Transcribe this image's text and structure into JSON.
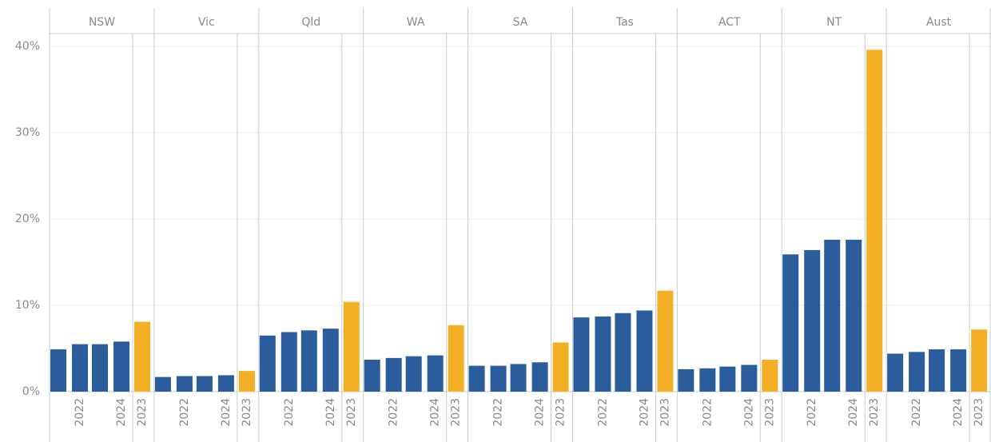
{
  "chart_data": {
    "type": "bar",
    "ylim": [
      0,
      40
    ],
    "yticks": [
      {
        "value": 0,
        "label": "0%"
      },
      {
        "value": 10,
        "label": "10%"
      },
      {
        "value": 20,
        "label": "20%"
      },
      {
        "value": 30,
        "label": "30%"
      },
      {
        "value": 40,
        "label": "40%"
      }
    ],
    "grid": true,
    "colors": [
      "#2b5c9b",
      "#2b5c9b",
      "#2b5c9b",
      "#2b5c9b",
      "#f3b026"
    ],
    "panels": [
      {
        "name": "NSW",
        "categories": [
          null,
          "2022",
          null,
          "2024",
          "2023"
        ],
        "values": [
          4.9,
          5.5,
          5.5,
          5.8,
          8.1
        ]
      },
      {
        "name": "Vic",
        "categories": [
          null,
          "2022",
          null,
          "2024",
          "2023"
        ],
        "values": [
          1.7,
          1.8,
          1.8,
          1.9,
          2.4
        ]
      },
      {
        "name": "Qld",
        "categories": [
          null,
          "2022",
          null,
          "2024",
          "2023"
        ],
        "values": [
          6.5,
          6.9,
          7.1,
          7.3,
          10.4
        ]
      },
      {
        "name": "WA",
        "categories": [
          null,
          "2022",
          null,
          "2024",
          "2023"
        ],
        "values": [
          3.7,
          3.9,
          4.1,
          4.2,
          7.7
        ]
      },
      {
        "name": "SA",
        "categories": [
          null,
          "2022",
          null,
          "2024",
          "2023"
        ],
        "values": [
          3.0,
          3.0,
          3.2,
          3.4,
          5.7
        ]
      },
      {
        "name": "Tas",
        "categories": [
          null,
          "2022",
          null,
          "2024",
          "2023"
        ],
        "values": [
          8.6,
          8.7,
          9.1,
          9.4,
          11.7
        ]
      },
      {
        "name": "ACT",
        "categories": [
          null,
          "2022",
          null,
          "2024",
          "2023"
        ],
        "values": [
          2.6,
          2.7,
          2.9,
          3.1,
          3.7
        ]
      },
      {
        "name": "NT",
        "categories": [
          null,
          "2022",
          null,
          "2024",
          "2023"
        ],
        "values": [
          15.9,
          16.4,
          17.6,
          17.6,
          39.6
        ]
      },
      {
        "name": "Aust",
        "categories": [
          null,
          "2022",
          null,
          "2024",
          "2023"
        ],
        "values": [
          4.4,
          4.6,
          4.9,
          4.9,
          7.2
        ]
      }
    ]
  }
}
